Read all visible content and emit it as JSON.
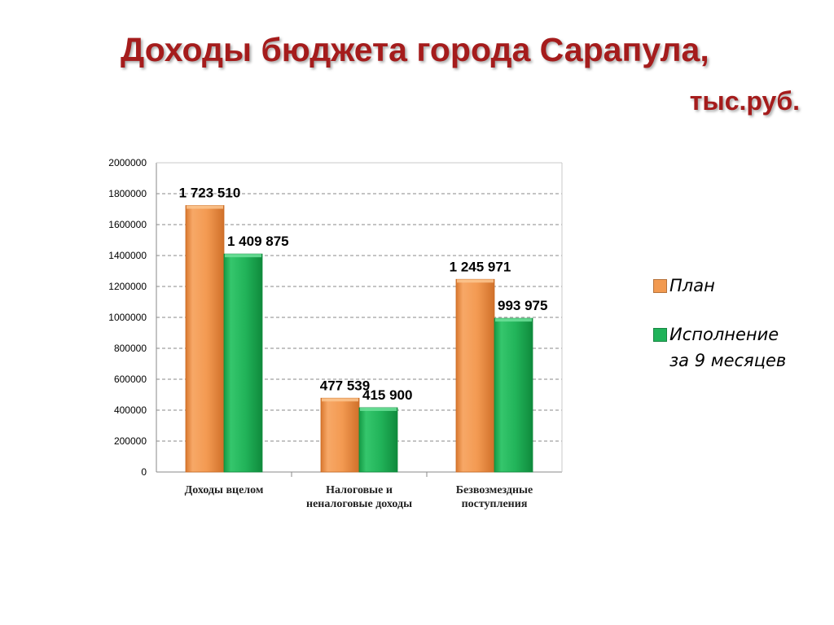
{
  "title": "Доходы бюджета города Сарапула,",
  "units": "тыс.руб.",
  "chart_data": {
    "type": "bar",
    "categories": [
      [
        "Доходы вцелом"
      ],
      [
        "Налоговые и",
        "неналоговые доходы"
      ],
      [
        "Безвозмездные",
        "поступления"
      ]
    ],
    "series": [
      {
        "name": "План",
        "values": [
          1723510,
          477539,
          1245971
        ],
        "labels": [
          "1 723 510",
          "477 539",
          "1 245 971"
        ],
        "color": "#f29a50"
      },
      {
        "name": "Исполнение за 9 месяцев",
        "name_lines": [
          "Исполнение",
          "за 9 месяцев"
        ],
        "values": [
          1409875,
          415900,
          993975
        ],
        "labels": [
          "1 409 875",
          "415 900",
          "993 975"
        ],
        "color": "#20b35a"
      }
    ],
    "ylim": [
      0,
      2000000
    ],
    "yticks": [
      "0",
      "200000",
      "400000",
      "600000",
      "800000",
      "1000000",
      "1200000",
      "1400000",
      "1600000",
      "1800000",
      "2000000"
    ],
    "grid": true,
    "legend": "right"
  }
}
